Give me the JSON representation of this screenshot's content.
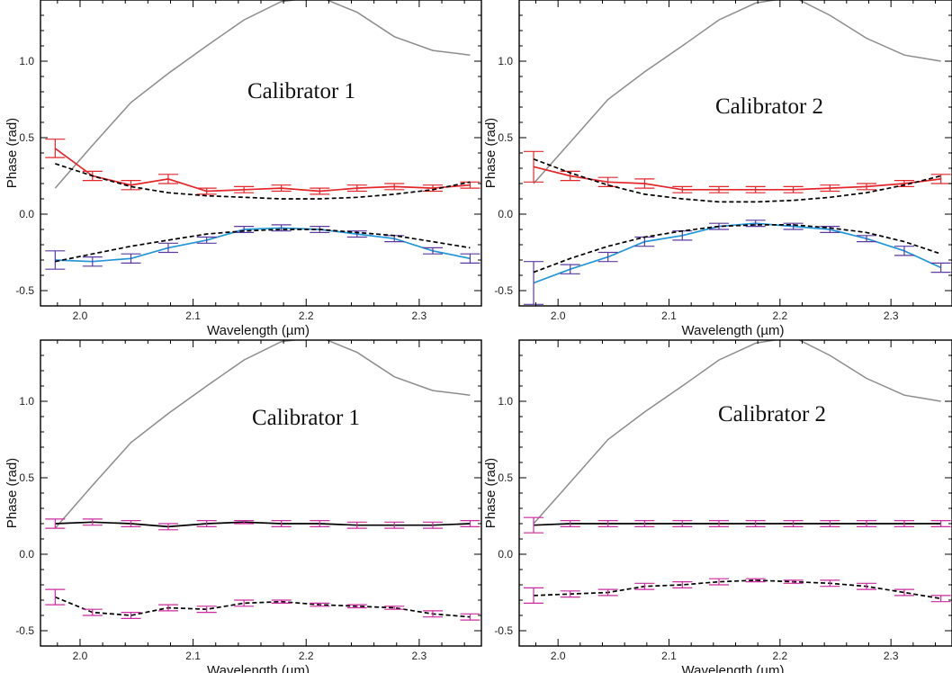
{
  "colors": {
    "spectrum": "#8c8c8c",
    "red": "#e3262a",
    "blue": "#1f96d6",
    "error_purple": "#5a3aa0",
    "magenta": "#cc2a9e",
    "fit": "#000000"
  },
  "chart_data": [
    {
      "type": "line",
      "title": "Calibrator 1",
      "xlabel": "Wavelength (µm)",
      "ylabel": "Phase (rad)",
      "xlim": [
        1.965,
        2.355
      ],
      "ylim": [
        -0.6,
        1.4
      ],
      "xticks": [
        2.0,
        2.1,
        2.2,
        2.3
      ],
      "xtick_labels": [
        "2.0",
        "2.1",
        "2.2",
        "2.3"
      ],
      "yticks": [
        -0.5,
        0.0,
        0.5,
        1.0
      ],
      "ytick_labels": [
        "-0.5",
        "0.0",
        "0.5",
        "1.0"
      ],
      "x": [
        1.978,
        2.011,
        2.045,
        2.078,
        2.112,
        2.145,
        2.178,
        2.212,
        2.245,
        2.278,
        2.312,
        2.345
      ],
      "series": [
        {
          "color_key": "spectrum",
          "style": "solid",
          "errors": false,
          "values": [
            0.17,
            0.45,
            0.73,
            0.92,
            1.1,
            1.27,
            1.39,
            1.42,
            1.32,
            1.16,
            1.07,
            1.04
          ]
        },
        {
          "color_key": "red",
          "style": "solid",
          "errors": true,
          "error_color_key": "red",
          "values": [
            0.43,
            0.25,
            0.19,
            0.23,
            0.15,
            0.16,
            0.17,
            0.15,
            0.17,
            0.18,
            0.17,
            0.19
          ],
          "err": [
            0.06,
            0.03,
            0.03,
            0.03,
            0.02,
            0.02,
            0.02,
            0.02,
            0.02,
            0.02,
            0.02,
            0.02
          ]
        },
        {
          "color_key": "fit",
          "style": "dashed",
          "errors": false,
          "values": [
            0.33,
            0.25,
            0.18,
            0.14,
            0.12,
            0.11,
            0.1,
            0.1,
            0.11,
            0.13,
            0.16,
            0.21
          ]
        },
        {
          "color_key": "blue",
          "style": "solid",
          "errors": true,
          "error_color_key": "error_purple",
          "values": [
            -0.3,
            -0.31,
            -0.29,
            -0.22,
            -0.17,
            -0.1,
            -0.09,
            -0.1,
            -0.13,
            -0.16,
            -0.24,
            -0.29
          ],
          "err": [
            0.06,
            0.03,
            0.03,
            0.03,
            0.02,
            0.02,
            0.02,
            0.02,
            0.02,
            0.02,
            0.02,
            0.03
          ]
        },
        {
          "color_key": "fit",
          "style": "dashed",
          "errors": false,
          "values": [
            -0.31,
            -0.26,
            -0.21,
            -0.17,
            -0.13,
            -0.11,
            -0.1,
            -0.1,
            -0.12,
            -0.14,
            -0.18,
            -0.22
          ]
        }
      ]
    },
    {
      "type": "line",
      "title": "Calibrator 2",
      "xlabel": "Wavelength (µm)",
      "ylabel": "Phase (rad)",
      "xlim": [
        1.965,
        2.355
      ],
      "ylim": [
        -0.6,
        1.4
      ],
      "xticks": [
        2.0,
        2.1,
        2.2,
        2.3
      ],
      "xtick_labels": [
        "2.0",
        "2.1",
        "2.2",
        "2.3"
      ],
      "yticks": [
        -0.5,
        0.0,
        0.5,
        1.0
      ],
      "ytick_labels": [
        "-0.5",
        "0.0",
        "0.5",
        "1.0"
      ],
      "x": [
        1.978,
        2.011,
        2.045,
        2.078,
        2.112,
        2.145,
        2.178,
        2.212,
        2.245,
        2.278,
        2.312,
        2.345
      ],
      "series": [
        {
          "color_key": "spectrum",
          "style": "solid",
          "errors": false,
          "values": [
            0.2,
            0.47,
            0.75,
            0.93,
            1.1,
            1.27,
            1.38,
            1.42,
            1.3,
            1.15,
            1.04,
            1.0
          ]
        },
        {
          "color_key": "red",
          "style": "solid",
          "errors": true,
          "error_color_key": "red",
          "values": [
            0.31,
            0.25,
            0.21,
            0.2,
            0.16,
            0.16,
            0.16,
            0.16,
            0.17,
            0.18,
            0.2,
            0.23
          ],
          "err": [
            0.1,
            0.03,
            0.03,
            0.03,
            0.02,
            0.02,
            0.02,
            0.02,
            0.02,
            0.02,
            0.02,
            0.03
          ]
        },
        {
          "color_key": "fit",
          "style": "dashed",
          "errors": false,
          "values": [
            0.36,
            0.27,
            0.19,
            0.13,
            0.1,
            0.08,
            0.08,
            0.09,
            0.11,
            0.14,
            0.19,
            0.25
          ]
        },
        {
          "color_key": "blue",
          "style": "solid",
          "errors": true,
          "error_color_key": "error_purple",
          "values": [
            -0.45,
            -0.36,
            -0.28,
            -0.18,
            -0.14,
            -0.08,
            -0.06,
            -0.08,
            -0.1,
            -0.16,
            -0.24,
            -0.35
          ],
          "err": [
            0.14,
            0.03,
            0.03,
            0.03,
            0.03,
            0.02,
            0.02,
            0.02,
            0.02,
            0.02,
            0.03,
            0.03
          ]
        },
        {
          "color_key": "fit",
          "style": "dashed",
          "errors": false,
          "values": [
            -0.38,
            -0.29,
            -0.21,
            -0.15,
            -0.11,
            -0.08,
            -0.07,
            -0.07,
            -0.09,
            -0.12,
            -0.18,
            -0.26
          ]
        }
      ]
    },
    {
      "type": "line",
      "title": "Calibrator 1",
      "xlabel": "Wavelength (µm)",
      "ylabel": "Phase (rad)",
      "xlim": [
        1.965,
        2.355
      ],
      "ylim": [
        -0.6,
        1.4
      ],
      "xticks": [
        2.0,
        2.1,
        2.2,
        2.3
      ],
      "xtick_labels": [
        "2.0",
        "2.1",
        "2.2",
        "2.3"
      ],
      "yticks": [
        -0.5,
        0.0,
        0.5,
        1.0
      ],
      "ytick_labels": [
        "-0.5",
        "0.0",
        "0.5",
        "1.0"
      ],
      "x": [
        1.978,
        2.011,
        2.045,
        2.078,
        2.112,
        2.145,
        2.178,
        2.212,
        2.245,
        2.278,
        2.312,
        2.345
      ],
      "series": [
        {
          "color_key": "spectrum",
          "style": "solid",
          "errors": false,
          "values": [
            0.17,
            0.45,
            0.73,
            0.92,
            1.1,
            1.27,
            1.39,
            1.42,
            1.32,
            1.16,
            1.07,
            1.04
          ]
        },
        {
          "color_key": "fit",
          "style": "solid",
          "errors": true,
          "error_color_key": "magenta",
          "values": [
            0.2,
            0.21,
            0.2,
            0.18,
            0.2,
            0.21,
            0.2,
            0.2,
            0.19,
            0.19,
            0.19,
            0.2
          ],
          "err": [
            0.03,
            0.02,
            0.02,
            0.02,
            0.02,
            0.01,
            0.02,
            0.02,
            0.02,
            0.02,
            0.02,
            0.02
          ]
        },
        {
          "color_key": "fit",
          "style": "dashed",
          "errors": true,
          "error_color_key": "magenta",
          "values": [
            -0.28,
            -0.38,
            -0.4,
            -0.35,
            -0.36,
            -0.32,
            -0.31,
            -0.33,
            -0.34,
            -0.35,
            -0.39,
            -0.41
          ],
          "err": [
            0.05,
            0.02,
            0.02,
            0.02,
            0.02,
            0.02,
            0.01,
            0.01,
            0.01,
            0.01,
            0.02,
            0.02
          ]
        }
      ]
    },
    {
      "type": "line",
      "title": "Calibrator 2",
      "xlabel": "Wavelength (µm)",
      "ylabel": "Phase (rad)",
      "xlim": [
        1.965,
        2.355
      ],
      "ylim": [
        -0.6,
        1.4
      ],
      "xticks": [
        2.0,
        2.1,
        2.2,
        2.3
      ],
      "xtick_labels": [
        "2.0",
        "2.1",
        "2.2",
        "2.3"
      ],
      "yticks": [
        -0.5,
        0.0,
        0.5,
        1.0
      ],
      "ytick_labels": [
        "-0.5",
        "0.0",
        "0.5",
        "1.0"
      ],
      "x": [
        1.978,
        2.011,
        2.045,
        2.078,
        2.112,
        2.145,
        2.178,
        2.212,
        2.245,
        2.278,
        2.312,
        2.345
      ],
      "series": [
        {
          "color_key": "spectrum",
          "style": "solid",
          "errors": false,
          "values": [
            0.2,
            0.47,
            0.75,
            0.93,
            1.1,
            1.27,
            1.38,
            1.42,
            1.3,
            1.15,
            1.04,
            1.0
          ]
        },
        {
          "color_key": "fit",
          "style": "solid",
          "errors": true,
          "error_color_key": "magenta",
          "values": [
            0.19,
            0.2,
            0.2,
            0.2,
            0.2,
            0.2,
            0.2,
            0.2,
            0.2,
            0.2,
            0.2,
            0.2
          ],
          "err": [
            0.05,
            0.02,
            0.02,
            0.02,
            0.02,
            0.02,
            0.02,
            0.02,
            0.02,
            0.02,
            0.02,
            0.02
          ]
        },
        {
          "color_key": "fit",
          "style": "dashed",
          "errors": true,
          "error_color_key": "magenta",
          "values": [
            -0.27,
            -0.26,
            -0.25,
            -0.21,
            -0.2,
            -0.18,
            -0.17,
            -0.18,
            -0.19,
            -0.21,
            -0.25,
            -0.29
          ],
          "err": [
            0.05,
            0.02,
            0.02,
            0.02,
            0.02,
            0.02,
            0.01,
            0.01,
            0.02,
            0.02,
            0.02,
            0.02
          ]
        }
      ]
    }
  ]
}
